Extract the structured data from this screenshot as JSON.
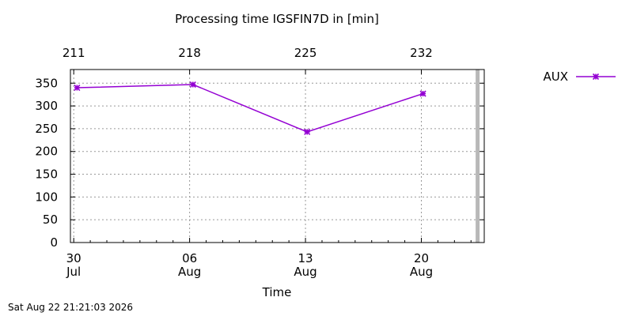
{
  "chart_data": {
    "type": "line",
    "title": "Processing time IGSFIN7D in [min]",
    "xlabel": "Time",
    "ylabel": "",
    "ylim": [
      0,
      380
    ],
    "yticks": [
      0,
      50,
      100,
      150,
      200,
      250,
      300,
      350
    ],
    "x_ticks_bottom": [
      {
        "day": 0,
        "label": "30",
        "sublabel": "Jul"
      },
      {
        "day": 7,
        "label": "06",
        "sublabel": "Aug"
      },
      {
        "day": 14,
        "label": "13",
        "sublabel": "Aug"
      },
      {
        "day": 21,
        "label": "20",
        "sublabel": "Aug"
      }
    ],
    "x_ticks_top": [
      {
        "day": 0,
        "label": "211"
      },
      {
        "day": 7,
        "label": "218"
      },
      {
        "day": 14,
        "label": "225"
      },
      {
        "day": 21,
        "label": "232"
      }
    ],
    "xlim_days": [
      -0.2,
      24.8
    ],
    "current_marker_day": 24.4,
    "grid": true,
    "legend": "top-right",
    "series": [
      {
        "name": "AUX",
        "color": "#9400d3",
        "marker": "x-cross",
        "points": [
          {
            "day": 0.2,
            "y": 340
          },
          {
            "day": 7.2,
            "y": 347
          },
          {
            "day": 14.1,
            "y": 243
          },
          {
            "day": 21.1,
            "y": 327
          }
        ]
      }
    ]
  },
  "footer": {
    "timestamp": "Sat Aug 22 21:21:03 2026"
  }
}
